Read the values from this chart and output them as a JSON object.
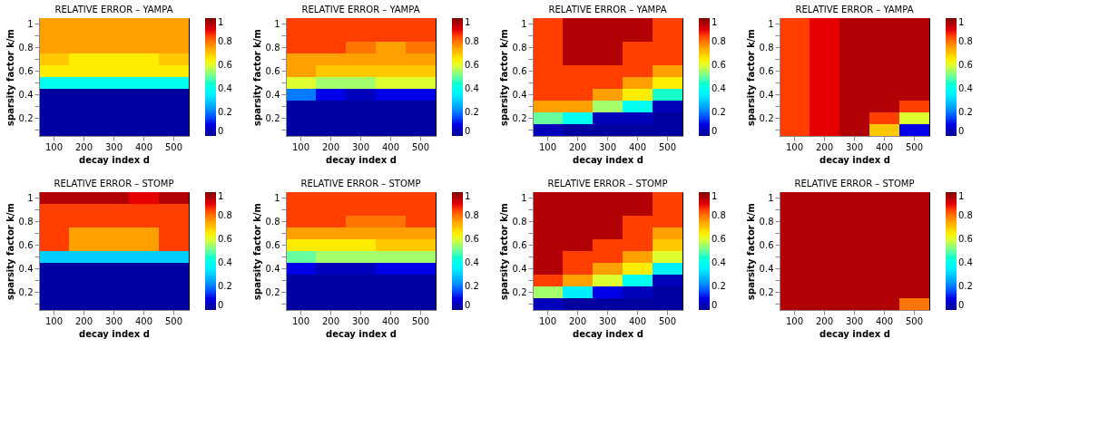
{
  "chart_data": [
    {
      "type": "heatmap",
      "title": "RELATIVE ERROR – YAMPA",
      "xlabel": "decay index d",
      "ylabel": "sparsity factor k/m",
      "categories": [
        "100",
        "200",
        "300",
        "400",
        "500"
      ],
      "y_categories": [
        "1",
        null,
        "0.8",
        null,
        "0.6",
        null,
        "0.4",
        null,
        "0.2",
        null
      ],
      "clim": [
        0,
        1
      ],
      "cticks": [
        0,
        0.2,
        0.4,
        0.6,
        0.8,
        1
      ],
      "cells": [
        [
          0.75,
          0.75,
          0.75,
          0.75,
          0.75
        ],
        [
          0.75,
          0.75,
          0.75,
          0.75,
          0.75
        ],
        [
          0.75,
          0.75,
          0.75,
          0.75,
          0.75
        ],
        [
          0.7,
          0.65,
          0.65,
          0.65,
          0.7
        ],
        [
          0.65,
          0.65,
          0.65,
          0.65,
          0.65
        ],
        [
          0.4,
          0.4,
          0.4,
          0.4,
          0.4
        ],
        [
          0.02,
          0.02,
          0.02,
          0.02,
          0.02
        ],
        [
          0.02,
          0.02,
          0.02,
          0.02,
          0.02
        ],
        [
          0.02,
          0.02,
          0.02,
          0.02,
          0.02
        ],
        [
          0.02,
          0.02,
          0.02,
          0.02,
          0.02
        ]
      ]
    },
    {
      "type": "heatmap",
      "title": "RELATIVE ERROR – YAMPA",
      "xlabel": "decay index d",
      "ylabel": "sparsity factor k/m",
      "categories": [
        "100",
        "200",
        "300",
        "400",
        "500"
      ],
      "y_categories": [
        "1",
        null,
        "0.8",
        null,
        "0.6",
        null,
        "0.4",
        null,
        "0.2",
        null
      ],
      "clim": [
        0,
        1
      ],
      "cticks": [
        0,
        0.2,
        0.4,
        0.6,
        0.8,
        1
      ],
      "cells": [
        [
          0.85,
          0.85,
          0.85,
          0.85,
          0.85
        ],
        [
          0.85,
          0.85,
          0.85,
          0.85,
          0.85
        ],
        [
          0.85,
          0.85,
          0.8,
          0.75,
          0.8
        ],
        [
          0.75,
          0.75,
          0.75,
          0.75,
          0.75
        ],
        [
          0.75,
          0.7,
          0.7,
          0.7,
          0.7
        ],
        [
          0.6,
          0.55,
          0.55,
          0.6,
          0.6
        ],
        [
          0.2,
          0.1,
          0.05,
          0.1,
          0.1
        ],
        [
          0.02,
          0.02,
          0.02,
          0.02,
          0.02
        ],
        [
          0.02,
          0.02,
          0.02,
          0.02,
          0.02
        ],
        [
          0.02,
          0.02,
          0.02,
          0.02,
          0.02
        ]
      ]
    },
    {
      "type": "heatmap",
      "title": "RELATIVE ERROR – YAMPA",
      "xlabel": "decay index d",
      "ylabel": "sparsity factor k/m",
      "categories": [
        "100",
        "200",
        "300",
        "400",
        "500"
      ],
      "y_categories": [
        "1",
        null,
        "0.8",
        null,
        "0.6",
        null,
        "0.4",
        null,
        "0.2",
        null
      ],
      "clim": [
        0,
        1
      ],
      "cticks": [
        0,
        0.2,
        0.4,
        0.6,
        0.8,
        1
      ],
      "cells": [
        [
          0.85,
          0.95,
          0.95,
          0.95,
          0.85
        ],
        [
          0.85,
          0.95,
          0.95,
          0.95,
          0.85
        ],
        [
          0.85,
          0.95,
          0.95,
          0.85,
          0.85
        ],
        [
          0.85,
          0.95,
          0.95,
          0.85,
          0.85
        ],
        [
          0.85,
          0.85,
          0.85,
          0.85,
          0.75
        ],
        [
          0.85,
          0.85,
          0.85,
          0.75,
          0.65
        ],
        [
          0.85,
          0.85,
          0.75,
          0.65,
          0.45
        ],
        [
          0.75,
          0.75,
          0.55,
          0.4,
          0.05
        ],
        [
          0.5,
          0.4,
          0.05,
          0.05,
          0.02
        ],
        [
          0.05,
          0.02,
          0.02,
          0.02,
          0.02
        ]
      ]
    },
    {
      "type": "heatmap",
      "title": "RELATIVE ERROR – YAMPA",
      "xlabel": "decay index d",
      "ylabel": "sparsity factor k/m",
      "categories": [
        "100",
        "200",
        "300",
        "400",
        "500"
      ],
      "y_categories": [
        "1",
        null,
        "0.8",
        null,
        "0.6",
        null,
        "0.4",
        null,
        "0.2",
        null
      ],
      "clim": [
        0,
        1
      ],
      "cticks": [
        0,
        0.2,
        0.4,
        0.6,
        0.8,
        1
      ],
      "cells": [
        [
          0.85,
          0.9,
          0.95,
          0.95,
          0.95
        ],
        [
          0.85,
          0.9,
          0.95,
          0.95,
          0.95
        ],
        [
          0.85,
          0.9,
          0.95,
          0.95,
          0.95
        ],
        [
          0.85,
          0.9,
          0.95,
          0.95,
          0.95
        ],
        [
          0.85,
          0.9,
          0.95,
          0.95,
          0.95
        ],
        [
          0.85,
          0.9,
          0.95,
          0.95,
          0.95
        ],
        [
          0.85,
          0.9,
          0.95,
          0.95,
          0.95
        ],
        [
          0.85,
          0.9,
          0.95,
          0.95,
          0.85
        ],
        [
          0.85,
          0.9,
          0.95,
          0.85,
          0.6
        ],
        [
          0.85,
          0.9,
          0.95,
          0.7,
          0.1
        ]
      ]
    },
    {
      "type": "heatmap",
      "title": "RELATIVE ERROR – STOMP",
      "xlabel": "decay index d",
      "ylabel": "sparsity factor k/m",
      "categories": [
        "100",
        "200",
        "300",
        "400",
        "500"
      ],
      "y_categories": [
        "1",
        null,
        "0.8",
        null,
        "0.6",
        null,
        "0.4",
        null,
        "0.2",
        null
      ],
      "clim": [
        0,
        1
      ],
      "cticks": [
        0,
        0.2,
        0.4,
        0.6,
        0.8,
        1
      ],
      "cells": [
        [
          0.95,
          0.95,
          0.95,
          0.9,
          0.95
        ],
        [
          0.85,
          0.85,
          0.85,
          0.85,
          0.85
        ],
        [
          0.85,
          0.85,
          0.85,
          0.85,
          0.85
        ],
        [
          0.85,
          0.75,
          0.75,
          0.75,
          0.85
        ],
        [
          0.85,
          0.75,
          0.75,
          0.75,
          0.85
        ],
        [
          0.3,
          0.3,
          0.3,
          0.3,
          0.3
        ],
        [
          0.02,
          0.02,
          0.02,
          0.02,
          0.02
        ],
        [
          0.02,
          0.02,
          0.02,
          0.02,
          0.02
        ],
        [
          0.02,
          0.02,
          0.02,
          0.02,
          0.02
        ],
        [
          0.02,
          0.02,
          0.02,
          0.02,
          0.02
        ]
      ]
    },
    {
      "type": "heatmap",
      "title": "RELATIVE ERROR – STOMP",
      "xlabel": "decay index d",
      "ylabel": "sparsity factor k/m",
      "categories": [
        "100",
        "200",
        "300",
        "400",
        "500"
      ],
      "y_categories": [
        "1",
        null,
        "0.8",
        null,
        "0.6",
        null,
        "0.4",
        null,
        "0.2",
        null
      ],
      "clim": [
        0,
        1
      ],
      "cticks": [
        0,
        0.2,
        0.4,
        0.6,
        0.8,
        1
      ],
      "cells": [
        [
          0.85,
          0.85,
          0.85,
          0.85,
          0.85
        ],
        [
          0.85,
          0.85,
          0.85,
          0.85,
          0.85
        ],
        [
          0.85,
          0.85,
          0.8,
          0.8,
          0.85
        ],
        [
          0.75,
          0.75,
          0.75,
          0.75,
          0.75
        ],
        [
          0.65,
          0.65,
          0.65,
          0.7,
          0.7
        ],
        [
          0.5,
          0.55,
          0.55,
          0.55,
          0.55
        ],
        [
          0.1,
          0.05,
          0.05,
          0.1,
          0.1
        ],
        [
          0.02,
          0.02,
          0.02,
          0.02,
          0.02
        ],
        [
          0.02,
          0.02,
          0.02,
          0.02,
          0.02
        ],
        [
          0.02,
          0.02,
          0.02,
          0.02,
          0.02
        ]
      ]
    },
    {
      "type": "heatmap",
      "title": "RELATIVE ERROR – STOMP",
      "xlabel": "decay index d",
      "ylabel": "sparsity factor k/m",
      "categories": [
        "100",
        "200",
        "300",
        "400",
        "500"
      ],
      "y_categories": [
        "1",
        null,
        "0.8",
        null,
        "0.6",
        null,
        "0.4",
        null,
        "0.2",
        null
      ],
      "clim": [
        0,
        1
      ],
      "cticks": [
        0,
        0.2,
        0.4,
        0.6,
        0.8,
        1
      ],
      "cells": [
        [
          0.95,
          0.95,
          0.95,
          0.95,
          0.85
        ],
        [
          0.95,
          0.95,
          0.95,
          0.95,
          0.85
        ],
        [
          0.95,
          0.95,
          0.95,
          0.85,
          0.85
        ],
        [
          0.95,
          0.95,
          0.95,
          0.85,
          0.75
        ],
        [
          0.95,
          0.95,
          0.85,
          0.85,
          0.7
        ],
        [
          0.95,
          0.85,
          0.85,
          0.75,
          0.6
        ],
        [
          0.95,
          0.85,
          0.75,
          0.65,
          0.35
        ],
        [
          0.85,
          0.75,
          0.6,
          0.4,
          0.05
        ],
        [
          0.55,
          0.35,
          0.1,
          0.05,
          0.02
        ],
        [
          0.05,
          0.02,
          0.02,
          0.02,
          0.02
        ]
      ]
    },
    {
      "type": "heatmap",
      "title": "RELATIVE ERROR – STOMP",
      "xlabel": "decay index d",
      "ylabel": "sparsity factor k/m",
      "categories": [
        "100",
        "200",
        "300",
        "400",
        "500"
      ],
      "y_categories": [
        "1",
        null,
        "0.8",
        null,
        "0.6",
        null,
        "0.4",
        null,
        "0.2",
        null
      ],
      "clim": [
        0,
        1
      ],
      "cticks": [
        0,
        0.2,
        0.4,
        0.6,
        0.8,
        1
      ],
      "cells": [
        [
          0.95,
          0.95,
          0.95,
          0.95,
          0.95
        ],
        [
          0.95,
          0.95,
          0.95,
          0.95,
          0.95
        ],
        [
          0.95,
          0.95,
          0.95,
          0.95,
          0.95
        ],
        [
          0.95,
          0.95,
          0.95,
          0.95,
          0.95
        ],
        [
          0.95,
          0.95,
          0.95,
          0.95,
          0.95
        ],
        [
          0.95,
          0.95,
          0.95,
          0.95,
          0.95
        ],
        [
          0.95,
          0.95,
          0.95,
          0.95,
          0.95
        ],
        [
          0.95,
          0.95,
          0.95,
          0.95,
          0.95
        ],
        [
          0.95,
          0.95,
          0.95,
          0.95,
          0.95
        ],
        [
          0.95,
          0.95,
          0.95,
          0.95,
          0.8
        ]
      ]
    }
  ]
}
